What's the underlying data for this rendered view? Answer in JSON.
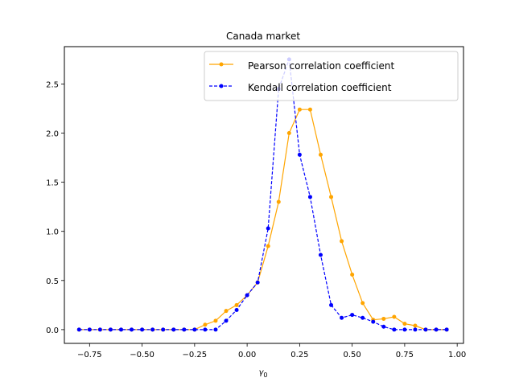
{
  "chart_data": {
    "type": "line",
    "title": "Canada market",
    "xlabel": "γ0",
    "ylabel": "",
    "xlim": [
      -0.87,
      1.03
    ],
    "ylim": [
      -0.14,
      2.88
    ],
    "xticks": [
      -0.75,
      -0.5,
      -0.25,
      0.0,
      0.25,
      0.5,
      0.75,
      1.0
    ],
    "xtick_labels": [
      "−0.75",
      "−0.50",
      "−0.25",
      "0.00",
      "0.25",
      "0.50",
      "0.75",
      "1.00"
    ],
    "yticks": [
      0.0,
      0.5,
      1.0,
      1.5,
      2.0,
      2.5
    ],
    "ytick_labels": [
      "0.0",
      "0.5",
      "1.0",
      "1.5",
      "2.0",
      "2.5"
    ],
    "grid": false,
    "legend_position": "top-right",
    "x": [
      -0.8,
      -0.75,
      -0.7,
      -0.65,
      -0.6,
      -0.55,
      -0.5,
      -0.45,
      -0.4,
      -0.35,
      -0.3,
      -0.25,
      -0.2,
      -0.15,
      -0.1,
      -0.05,
      0.0,
      0.05,
      0.1,
      0.15,
      0.2,
      0.25,
      0.3,
      0.35,
      0.4,
      0.45,
      0.5,
      0.55,
      0.6,
      0.65,
      0.7,
      0.75,
      0.8,
      0.85,
      0.9,
      0.95
    ],
    "series": [
      {
        "name": "Pearson correlation coefficient",
        "color": "#ffa500",
        "style": "solid",
        "values": [
          0.0,
          0.0,
          0.0,
          0.0,
          0.0,
          0.0,
          0.0,
          0.0,
          0.0,
          0.0,
          0.0,
          0.0,
          0.05,
          0.09,
          0.19,
          0.25,
          0.35,
          0.48,
          0.85,
          1.3,
          2.0,
          2.24,
          2.24,
          1.78,
          1.35,
          0.9,
          0.56,
          0.27,
          0.1,
          0.11,
          0.13,
          0.06,
          0.04,
          0.0,
          0.0,
          0.0
        ]
      },
      {
        "name": "Kendall correlation coefficient",
        "color": "#0000ff",
        "style": "dashed",
        "values": [
          0.0,
          0.0,
          0.0,
          0.0,
          0.0,
          0.0,
          0.0,
          0.0,
          0.0,
          0.0,
          0.0,
          0.0,
          0.0,
          0.0,
          0.09,
          0.2,
          0.35,
          0.48,
          1.03,
          2.45,
          2.75,
          1.78,
          1.35,
          0.76,
          0.25,
          0.12,
          0.15,
          0.12,
          0.08,
          0.03,
          0.0,
          0.0,
          0.0,
          0.0,
          0.0,
          0.0
        ]
      }
    ]
  }
}
